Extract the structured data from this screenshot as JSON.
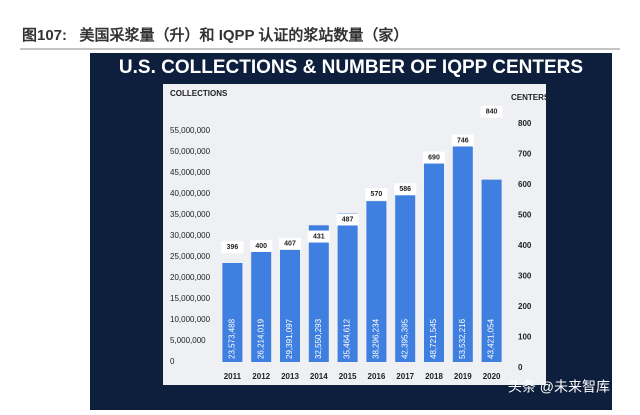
{
  "header": "图107:   美国采浆量（升）和 IQPP 认证的浆站数量（家）",
  "watermark": "头条 @未来智库",
  "chart_data": {
    "type": "bar",
    "title": "U.S. COLLECTIONS & NUMBER OF IQPP CENTERS",
    "y_label": "COLLECTIONS",
    "y2_label": "CENTERS",
    "categories": [
      "2011",
      "2012",
      "2013",
      "2014",
      "2015",
      "2016",
      "2017",
      "2018",
      "2019",
      "2020"
    ],
    "series": [
      {
        "name": "COLLECTIONS",
        "color": "#3f7fe0",
        "values": [
          23573488,
          26214019,
          29391097,
          32550293,
          35464612,
          38296234,
          42395395,
          48721545,
          53532216,
          43421054
        ],
        "value_labels": [
          "23,573,488",
          "26,214,019",
          "29,391,097",
          "32,550,293",
          "35,464,612",
          "38,296,234",
          "42,395,395",
          "48,721,545",
          "53,532,216",
          "43,421,054"
        ]
      },
      {
        "name": "CENTERS",
        "color": "#ffffff",
        "axis": "y2",
        "values": [
          396,
          400,
          407,
          431,
          487,
          570,
          586,
          690,
          746,
          840
        ]
      }
    ],
    "ylim": [
      0,
      55000000
    ],
    "yticks": [
      0,
      {
        "value": 5000000,
        "label": "5,000,000"
      },
      {
        "value": 10000000,
        "label": "10,000,000"
      },
      {
        "value": 15000000,
        "label": "15,000,000"
      },
      {
        "value": 20000000,
        "label": "20,000,000"
      },
      {
        "value": 25000000,
        "label": "25,000,000"
      },
      {
        "value": 30000000,
        "label": "30,000,000"
      },
      {
        "value": 35000000,
        "label": "35,000,000"
      },
      {
        "value": 40000000,
        "label": "40,000,000"
      },
      {
        "value": 45000000,
        "label": "45,000,000"
      },
      {
        "value": 50000000,
        "label": "50,000,000"
      },
      {
        "value": 55000000,
        "label": "55,000,000"
      }
    ],
    "y2lim": [
      0,
      800
    ],
    "y2ticks": [
      0,
      100,
      200,
      300,
      400,
      500,
      600,
      700,
      800
    ],
    "grid": false
  }
}
